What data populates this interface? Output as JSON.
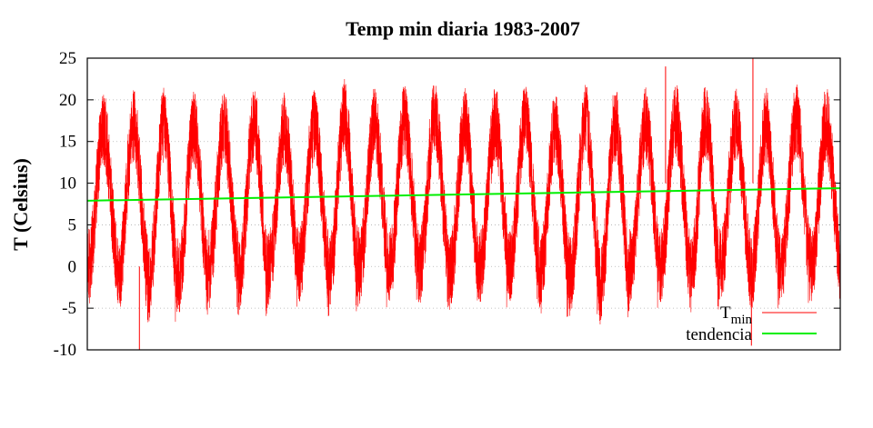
{
  "chart_data": {
    "type": "line",
    "title": "Temp min diaria 1983-2007",
    "ylabel": "T (Celsius)",
    "xlabel": "",
    "ylim": [
      -10,
      25
    ],
    "yticks": [
      -10,
      -5,
      0,
      5,
      10,
      15,
      20,
      25
    ],
    "grid": true,
    "legend_position": "bottom-right",
    "period": {
      "start_year": 1983,
      "end_year": 2007,
      "cycles": 25
    },
    "series": [
      {
        "name": "T_min",
        "legend_main": "T",
        "legend_sub": "min",
        "color": "#ff0000",
        "seasonal_peaks": [
          20.5,
          21,
          21,
          20.5,
          20.5,
          21,
          20.5,
          21,
          22,
          21,
          21.5,
          22,
          21,
          21,
          21.5,
          20.5,
          21.5,
          21,
          21,
          21.5,
          21.5,
          21,
          21,
          21.5,
          21
        ],
        "seasonal_troughs": [
          -5,
          -6,
          -7,
          -6,
          -5,
          -6,
          -5,
          -5,
          -6,
          -5,
          -5,
          -5,
          -6,
          -5,
          -5,
          -6,
          -6,
          -7,
          -5,
          -5,
          -6,
          -5,
          -6,
          -5,
          -5
        ],
        "extremes": [
          {
            "x": 1984.73,
            "y": -10
          },
          {
            "x": 2002.2,
            "y": 24
          },
          {
            "x": 2005.1,
            "y": 25
          },
          {
            "x": 2005.05,
            "y": -9.5
          }
        ]
      },
      {
        "name": "tendencia",
        "color": "#00ee00",
        "x": [
          1983,
          2007
        ],
        "y": [
          7.9,
          9.4
        ]
      }
    ]
  }
}
